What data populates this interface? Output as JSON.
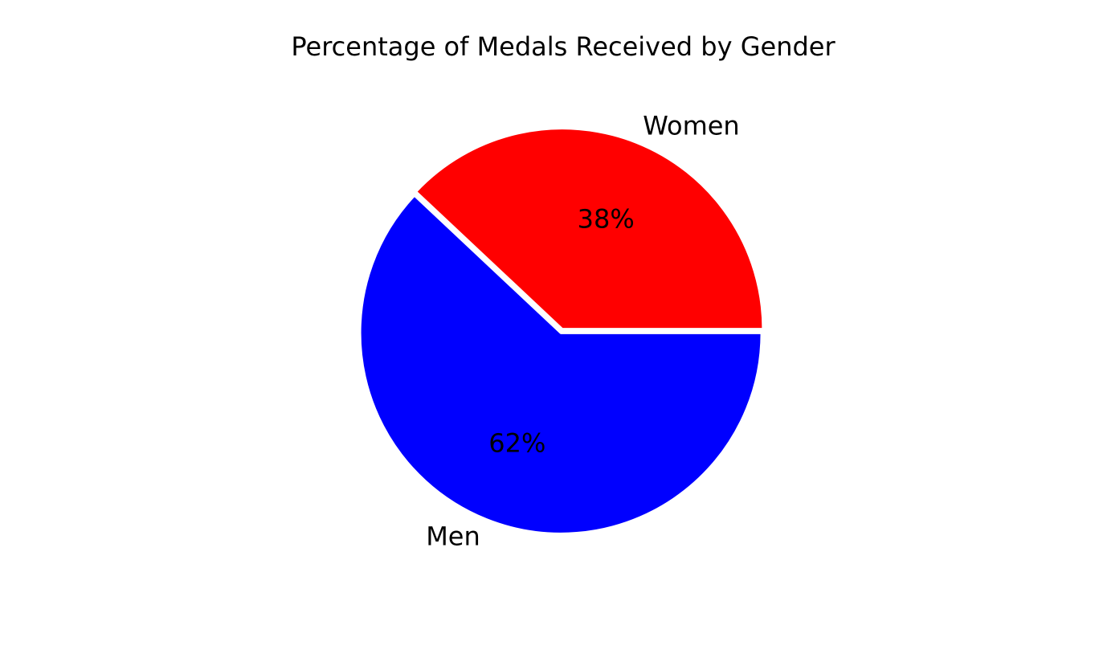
{
  "chart_data": {
    "type": "pie",
    "title": "Percentage of Medals Received by Gender",
    "slices": [
      {
        "label": "Women",
        "value": 38,
        "pct_label": "38%",
        "color": "#ff0000"
      },
      {
        "label": "Men",
        "value": 62,
        "pct_label": "62%",
        "color": "#0000ff"
      }
    ],
    "start_angle_deg": 0,
    "direction": "counterclockwise",
    "exploded": true,
    "edge_color": "#ffffff"
  }
}
